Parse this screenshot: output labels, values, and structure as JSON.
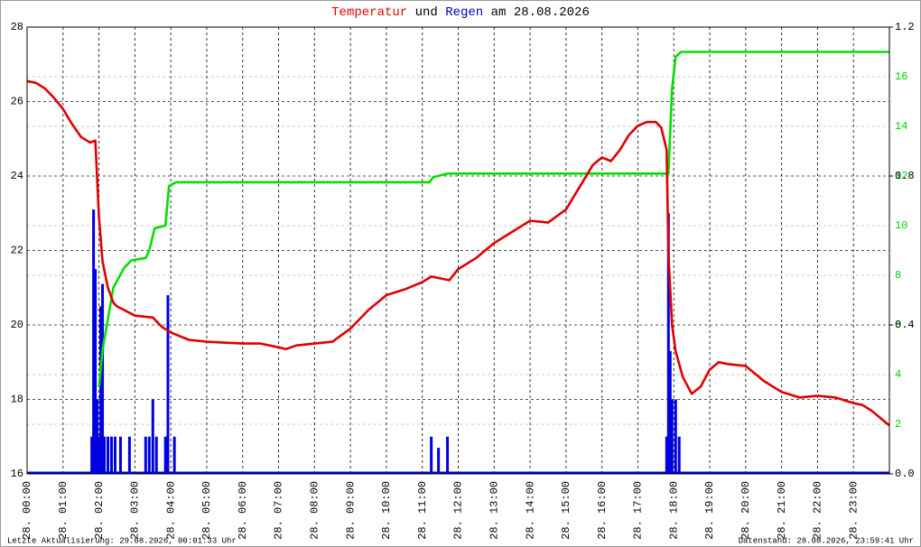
{
  "chart_data": {
    "type": "line",
    "title_parts": [
      {
        "text": "Temperatur",
        "color": "#e00000"
      },
      {
        "text": "und",
        "color": "#000000"
      },
      {
        "text": "Regen",
        "color": "#0000c0"
      },
      {
        "text": "am 28.08.2026",
        "color": "#000000"
      }
    ],
    "footer_left": "Letzte Aktualisierung: 29.08.2026, 00:01:33 Uhr",
    "footer_right": "Datenstand: 28.08.2026, 23:59:41 Uhr",
    "xlim": [
      0,
      24
    ],
    "xticks": [
      {
        "value": 0,
        "label": "28. 00:00"
      },
      {
        "value": 1,
        "label": "28. 01:00"
      },
      {
        "value": 2,
        "label": "28. 02:00"
      },
      {
        "value": 3,
        "label": "28. 03:00"
      },
      {
        "value": 4,
        "label": "28. 04:00"
      },
      {
        "value": 5,
        "label": "28. 05:00"
      },
      {
        "value": 6,
        "label": "28. 06:00"
      },
      {
        "value": 7,
        "label": "28. 07:00"
      },
      {
        "value": 8,
        "label": "28. 08:00"
      },
      {
        "value": 9,
        "label": "28. 09:00"
      },
      {
        "value": 10,
        "label": "28. 10:00"
      },
      {
        "value": 11,
        "label": "28. 11:00"
      },
      {
        "value": 12,
        "label": "28. 12:00"
      },
      {
        "value": 13,
        "label": "28. 13:00"
      },
      {
        "value": 14,
        "label": "28. 14:00"
      },
      {
        "value": 15,
        "label": "28. 15:00"
      },
      {
        "value": 16,
        "label": "28. 16:00"
      },
      {
        "value": 17,
        "label": "28. 17:00"
      },
      {
        "value": 18,
        "label": "28. 18:00"
      },
      {
        "value": 19,
        "label": "28. 19:00"
      },
      {
        "value": 20,
        "label": "28. 20:00"
      },
      {
        "value": 21,
        "label": "28. 21:00"
      },
      {
        "value": 22,
        "label": "28. 22:00"
      },
      {
        "value": 23,
        "label": "28. 23:00"
      }
    ],
    "ylim": [
      16,
      28
    ],
    "yticks": [
      16,
      18,
      20,
      22,
      24,
      26,
      28
    ],
    "y2lim": [
      0,
      1.2
    ],
    "y2ticks": [
      {
        "value": 0,
        "label": "0.0"
      },
      0.4,
      0.8,
      1.2
    ],
    "y3lim": [
      0,
      18
    ],
    "y3ticks": [
      2,
      4,
      6,
      8,
      10,
      12,
      14,
      16
    ],
    "y3color": "#00d000",
    "grid": true,
    "series": [
      {
        "kind": "bar",
        "axis": "y2",
        "color": "#0000e0",
        "x": [
          1.8,
          1.85,
          1.9,
          1.95,
          2.0,
          2.05,
          2.1,
          2.15,
          2.25,
          2.35,
          2.45,
          2.6,
          2.85,
          3.3,
          3.4,
          3.5,
          3.6,
          3.85,
          3.92,
          4.1,
          11.25,
          11.45,
          11.7,
          17.8,
          17.85,
          17.9,
          17.95,
          18.05,
          18.15
        ],
        "values": [
          0.1,
          0.71,
          0.55,
          0.2,
          0.1,
          0.45,
          0.51,
          0.1,
          0.1,
          0.1,
          0.1,
          0.1,
          0.1,
          0.1,
          0.1,
          0.2,
          0.1,
          0.1,
          0.48,
          0.1,
          0.1,
          0.07,
          0.1,
          0.1,
          0.7,
          0.33,
          0.2,
          0.2,
          0.1
        ]
      },
      {
        "kind": "line",
        "axis": "y3",
        "color": "#00e000",
        "x": [
          2.0,
          2.1,
          2.4,
          2.7,
          2.9,
          3.3,
          3.4,
          3.55,
          3.85,
          3.95,
          4.15,
          11.2,
          11.3,
          11.7,
          17.85,
          17.95,
          18.05,
          18.2,
          24
        ],
        "values": [
          3.5,
          5.0,
          7.5,
          8.3,
          8.6,
          8.7,
          9.0,
          9.9,
          10.0,
          11.6,
          11.75,
          11.75,
          11.95,
          12.1,
          12.1,
          15.5,
          16.8,
          17.0,
          17.0
        ]
      },
      {
        "kind": "line",
        "axis": "y",
        "color": "#e00000",
        "x": [
          0,
          0.25,
          0.5,
          0.75,
          1.0,
          1.25,
          1.5,
          1.75,
          1.9,
          2.0,
          2.1,
          2.25,
          2.4,
          2.5,
          3.0,
          3.5,
          3.75,
          4.0,
          4.5,
          5.0,
          6.0,
          6.5,
          7.0,
          7.2,
          7.5,
          8.0,
          8.5,
          9.0,
          9.5,
          10.0,
          10.5,
          11.0,
          11.25,
          11.5,
          11.75,
          12.0,
          12.5,
          13.0,
          13.5,
          14.0,
          14.5,
          15.0,
          15.25,
          15.5,
          15.75,
          16.0,
          16.25,
          16.5,
          16.75,
          17.0,
          17.25,
          17.5,
          17.65,
          17.8,
          17.85,
          17.95,
          18.05,
          18.25,
          18.5,
          18.75,
          19.0,
          19.25,
          19.5,
          20.0,
          20.25,
          20.5,
          21.0,
          21.5,
          22.0,
          22.5,
          23.0,
          23.25,
          23.5,
          24.0
        ],
        "values": [
          26.55,
          26.5,
          26.35,
          26.1,
          25.8,
          25.4,
          25.05,
          24.9,
          24.95,
          22.9,
          21.7,
          21.0,
          20.6,
          20.5,
          20.25,
          20.2,
          19.95,
          19.8,
          19.6,
          19.55,
          19.5,
          19.5,
          19.4,
          19.35,
          19.45,
          19.5,
          19.55,
          19.9,
          20.4,
          20.8,
          20.95,
          21.15,
          21.3,
          21.25,
          21.2,
          21.5,
          21.8,
          22.2,
          22.5,
          22.8,
          22.75,
          23.1,
          23.5,
          23.9,
          24.3,
          24.5,
          24.4,
          24.7,
          25.1,
          25.35,
          25.45,
          25.45,
          25.3,
          24.7,
          21.9,
          20.0,
          19.3,
          18.6,
          18.15,
          18.35,
          18.8,
          19.0,
          18.95,
          18.9,
          18.7,
          18.5,
          18.2,
          18.05,
          18.1,
          18.05,
          17.9,
          17.85,
          17.7,
          17.3
        ]
      }
    ]
  }
}
